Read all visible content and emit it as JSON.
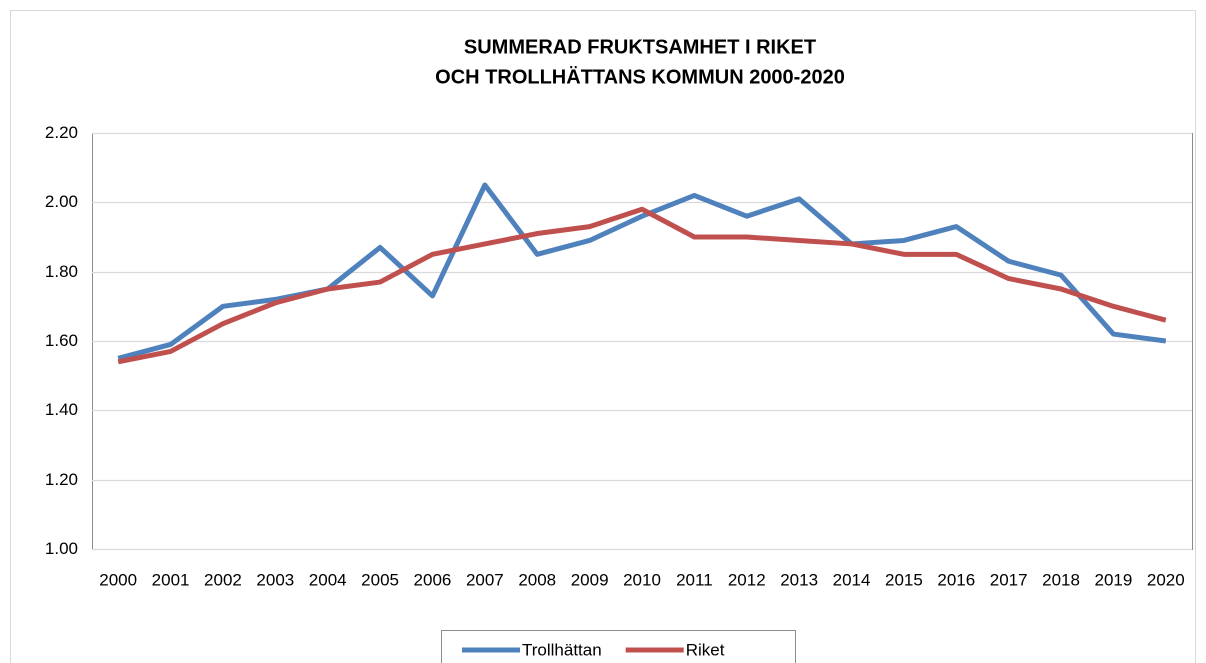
{
  "chart_data": {
    "type": "line",
    "title": [
      "SUMMERAD FRUKTSAMHET I RIKET",
      "OCH TROLLHÄTTANS KOMMUN 2000-2020"
    ],
    "categories": [
      "2000",
      "2001",
      "2002",
      "2003",
      "2004",
      "2005",
      "2006",
      "2007",
      "2008",
      "2009",
      "2010",
      "2011",
      "2012",
      "2013",
      "2014",
      "2015",
      "2016",
      "2017",
      "2018",
      "2019",
      "2020"
    ],
    "series": [
      {
        "name": "Trollhättan",
        "color": "#4f81bd",
        "values": [
          1.55,
          1.59,
          1.7,
          1.72,
          1.75,
          1.87,
          1.73,
          2.05,
          1.85,
          1.89,
          1.96,
          2.02,
          1.96,
          2.01,
          1.88,
          1.89,
          1.93,
          1.83,
          1.79,
          1.62,
          1.6
        ]
      },
      {
        "name": "Riket",
        "color": "#c0504d",
        "values": [
          1.54,
          1.57,
          1.65,
          1.71,
          1.75,
          1.77,
          1.85,
          1.88,
          1.91,
          1.93,
          1.98,
          1.9,
          1.9,
          1.89,
          1.88,
          1.85,
          1.85,
          1.78,
          1.75,
          1.7,
          1.66
        ]
      }
    ],
    "ylim": [
      1.0,
      2.2
    ],
    "yticks": [
      {
        "value": 1.0,
        "label": "1.00"
      },
      {
        "value": 1.2,
        "label": "1.20"
      },
      {
        "value": 1.4,
        "label": "1.40"
      },
      {
        "value": 1.6,
        "label": "1.60"
      },
      {
        "value": 1.8,
        "label": "1.80"
      },
      {
        "value": 2.0,
        "label": "2.00"
      },
      {
        "value": 2.2,
        "label": "2.20"
      }
    ],
    "grid": true,
    "legend": "bottom"
  }
}
